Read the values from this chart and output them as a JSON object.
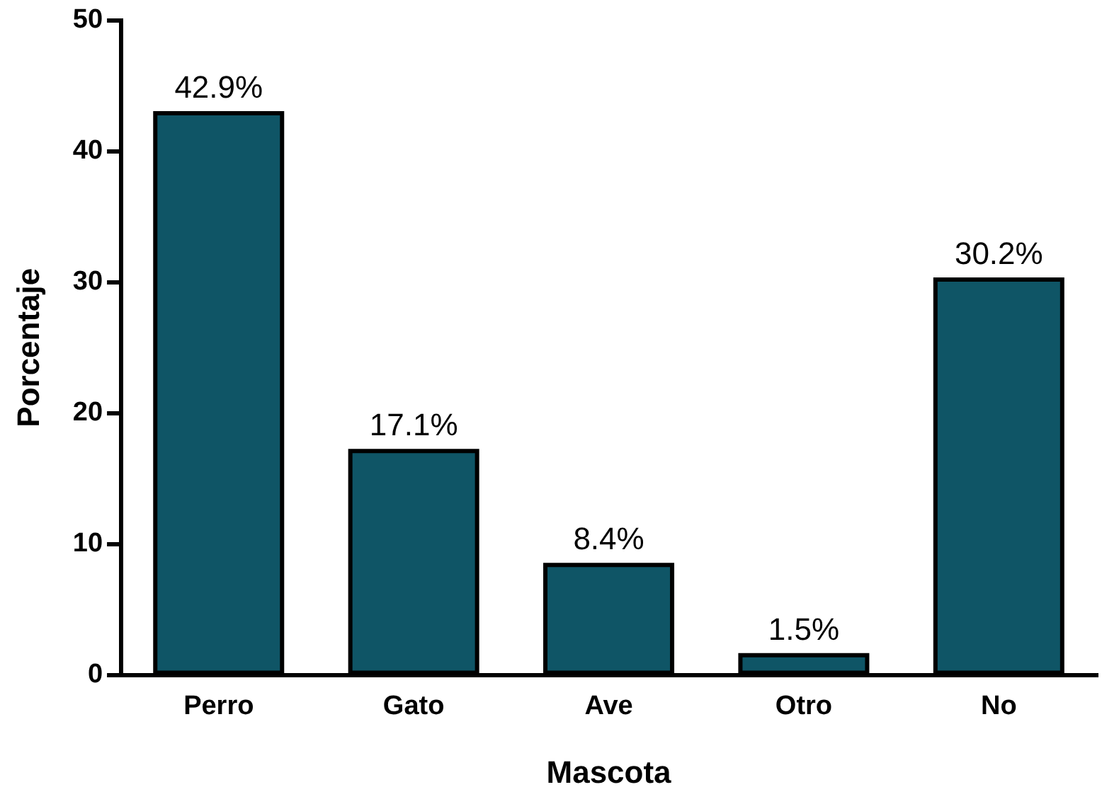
{
  "chart_data": {
    "type": "bar",
    "xlabel": "Mascota",
    "ylabel": "Porcentaje",
    "categories": [
      "Perro",
      "Gato",
      "Ave",
      "Otro",
      "No"
    ],
    "values": [
      42.9,
      17.1,
      8.4,
      1.5,
      30.2
    ],
    "value_labels": [
      "42.9%",
      "17.1%",
      "8.4%",
      "1.5%",
      "30.2%"
    ],
    "color": "#0f5566",
    "ylim": [
      0,
      50
    ],
    "yticks": [
      0,
      10,
      20,
      30,
      40,
      50
    ],
    "grid": false,
    "legend": false
  }
}
